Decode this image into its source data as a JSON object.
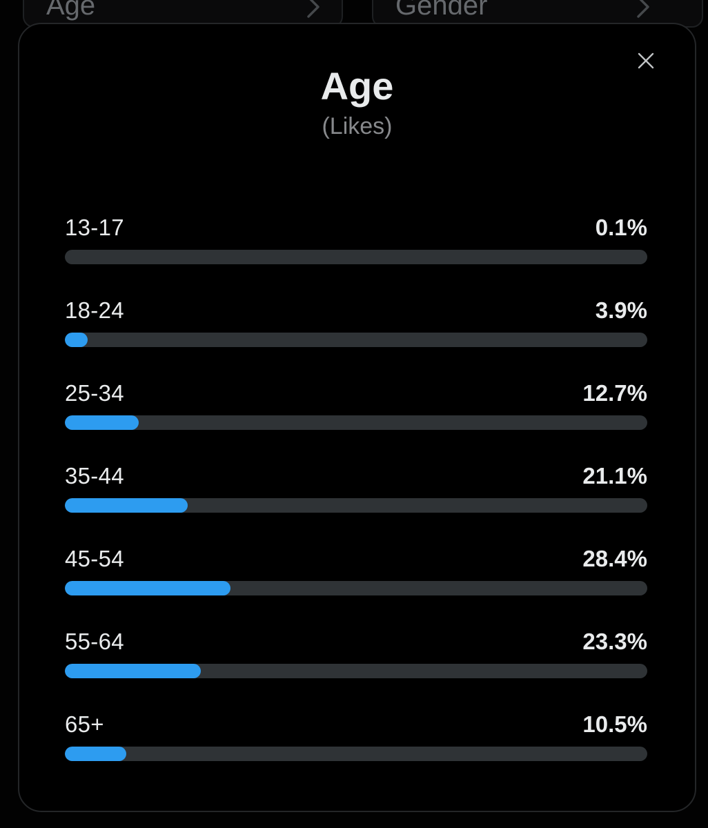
{
  "backdrop": {
    "left_card": {
      "label": "Age",
      "chevron_icon": "chevron-right"
    },
    "right_card": {
      "label": "Gender",
      "chevron_icon": "chevron-right"
    }
  },
  "modal": {
    "title": "Age",
    "subtitle": "(Likes)",
    "close_icon": "x-close"
  },
  "colors": {
    "accent_blue": "#2D9CF0",
    "track_gray": "#2F3336",
    "modal_background": "#000000",
    "modal_border": "#242628",
    "text_primary": "#E9EBEC",
    "text_secondary": "#87898C",
    "backdrop_text": "#66696D"
  },
  "chart_data": {
    "type": "bar",
    "orientation": "horizontal",
    "title": "Age",
    "subtitle": "(Likes)",
    "unit": "%",
    "xlim": [
      0,
      100
    ],
    "grid": false,
    "legend": false,
    "categories": [
      "13-17",
      "18-24",
      "25-34",
      "35-44",
      "45-54",
      "55-64",
      "65+"
    ],
    "values": [
      0.1,
      3.9,
      12.7,
      21.1,
      28.4,
      23.3,
      10.5
    ],
    "value_labels": [
      "0.1%",
      "3.9%",
      "12.7%",
      "21.1%",
      "28.4%",
      "23.3%",
      "10.5%"
    ]
  }
}
